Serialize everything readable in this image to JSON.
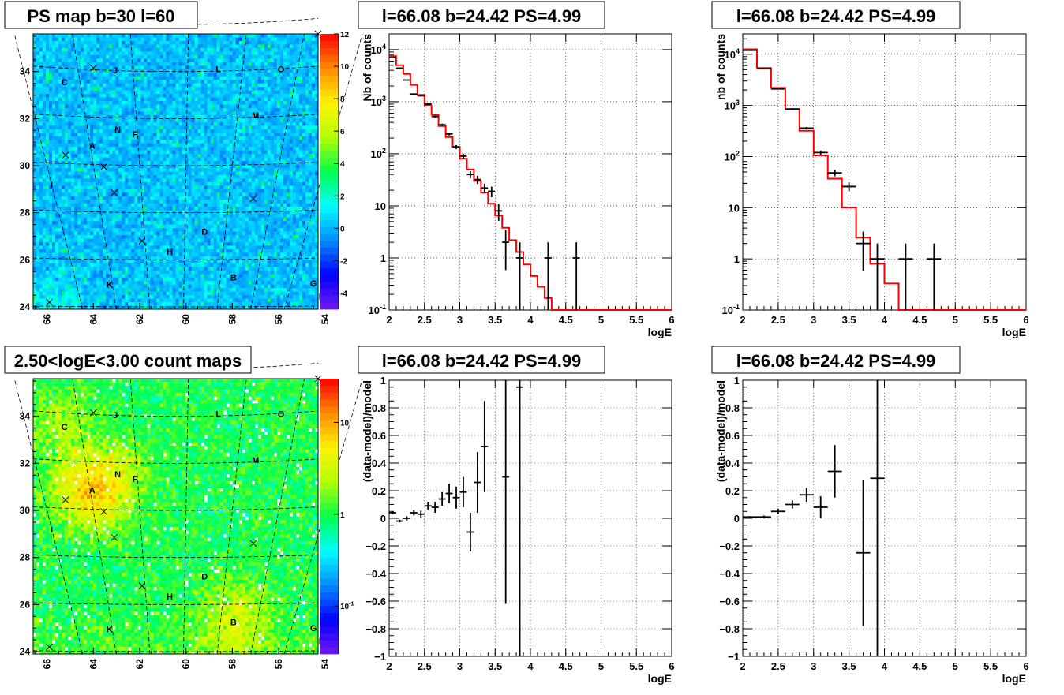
{
  "chart_data": [
    {
      "type": "heatmap",
      "title": "PS map b=30 l=60",
      "xlabel": "",
      "ylabel": "",
      "xlim": [
        66.6,
        54.3
      ],
      "ylim": [
        23.9,
        35.6
      ],
      "xticks": [
        "66",
        "64",
        "62",
        "60",
        "58",
        "56",
        "54"
      ],
      "yticks": [
        "24",
        "26",
        "28",
        "30",
        "32",
        "34"
      ],
      "colorscale": {
        "min": -5,
        "max": 12,
        "log": false,
        "tick_labels": [
          "-4",
          "-2",
          "0",
          "2",
          "4",
          "6",
          "8",
          "10",
          "12"
        ]
      },
      "source_labels": [
        "A",
        "B",
        "C",
        "D",
        "F",
        "G",
        "H",
        "I",
        "J",
        "K",
        "L",
        "M",
        "N",
        "O",
        "P"
      ]
    },
    {
      "type": "line",
      "title": "l=66.08 b=24.42 PS=4.99",
      "xlabel": "logE",
      "ylabel": "Nb of counts",
      "xlim": [
        2,
        6
      ],
      "ylim": [
        0.1,
        20000
      ],
      "log_y": true,
      "grid": true,
      "xticks": [
        "2",
        "2.5",
        "3",
        "3.5",
        "4",
        "4.5",
        "5",
        "5.5",
        "6"
      ],
      "yticks": [
        "10^-1",
        "1",
        "10",
        "10^2",
        "10^3",
        "10^4"
      ],
      "data_points": [
        {
          "x": 2.05,
          "y": 7000
        },
        {
          "x": 2.15,
          "y": 4400
        },
        {
          "x": 2.25,
          "y": 2600
        },
        {
          "x": 2.35,
          "y": 1400
        },
        {
          "x": 2.45,
          "y": 1300
        },
        {
          "x": 2.55,
          "y": 900
        },
        {
          "x": 2.65,
          "y": 520
        },
        {
          "x": 2.75,
          "y": 360
        },
        {
          "x": 2.85,
          "y": 240
        },
        {
          "x": 2.95,
          "y": 135
        },
        {
          "x": 3.05,
          "y": 90
        },
        {
          "x": 3.15,
          "y": 40
        },
        {
          "x": 3.25,
          "y": 32
        },
        {
          "x": 3.35,
          "y": 22
        },
        {
          "x": 3.45,
          "y": 19
        },
        {
          "x": 3.55,
          "y": 8
        },
        {
          "x": 3.65,
          "y": 2
        },
        {
          "x": 3.85,
          "y": 1
        },
        {
          "x": 4.25,
          "y": 1
        },
        {
          "x": 4.65,
          "y": 1
        }
      ],
      "model_steps": [
        [
          2.0,
          7500
        ],
        [
          2.1,
          5000
        ],
        [
          2.2,
          3400
        ],
        [
          2.3,
          2100
        ],
        [
          2.4,
          1350
        ],
        [
          2.5,
          850
        ],
        [
          2.6,
          560
        ],
        [
          2.7,
          340
        ],
        [
          2.8,
          210
        ],
        [
          2.9,
          135
        ],
        [
          3.0,
          80
        ],
        [
          3.1,
          50
        ],
        [
          3.2,
          30
        ],
        [
          3.3,
          18
        ],
        [
          3.4,
          11
        ],
        [
          3.5,
          6.5
        ],
        [
          3.6,
          3.8
        ],
        [
          3.7,
          2.2
        ],
        [
          3.8,
          1.3
        ],
        [
          3.9,
          0.75
        ],
        [
          4.0,
          0.45
        ],
        [
          4.1,
          0.28
        ],
        [
          4.2,
          0.17
        ],
        [
          4.3,
          0.1
        ],
        [
          6.0,
          0.1
        ]
      ]
    },
    {
      "type": "line",
      "title": "l=66.08 b=24.42 PS=4.99",
      "xlabel": "logE",
      "ylabel": "nb of counts",
      "xlim": [
        2,
        6
      ],
      "ylim": [
        0.1,
        25000
      ],
      "log_y": true,
      "grid": true,
      "xticks": [
        "2",
        "2.5",
        "3",
        "3.5",
        "4",
        "4.5",
        "5",
        "5.5",
        "6"
      ],
      "yticks": [
        "10^-1",
        "1",
        "10",
        "10^2",
        "10^3",
        "10^4"
      ],
      "data_points": [
        {
          "x": 2.1,
          "y": 12000
        },
        {
          "x": 2.3,
          "y": 5200
        },
        {
          "x": 2.5,
          "y": 2100
        },
        {
          "x": 2.7,
          "y": 850
        },
        {
          "x": 2.9,
          "y": 360
        },
        {
          "x": 3.1,
          "y": 120
        },
        {
          "x": 3.3,
          "y": 48
        },
        {
          "x": 3.5,
          "y": 26
        },
        {
          "x": 3.7,
          "y": 2
        },
        {
          "x": 3.9,
          "y": 1
        },
        {
          "x": 4.3,
          "y": 1
        },
        {
          "x": 4.7,
          "y": 1
        }
      ],
      "model_steps": [
        [
          2.0,
          12500
        ],
        [
          2.2,
          5400
        ],
        [
          2.4,
          2200
        ],
        [
          2.6,
          850
        ],
        [
          2.8,
          320
        ],
        [
          3.0,
          105
        ],
        [
          3.2,
          37
        ],
        [
          3.4,
          10
        ],
        [
          3.6,
          2.6
        ],
        [
          3.8,
          0.8
        ],
        [
          4.0,
          0.33
        ],
        [
          4.2,
          0.1
        ],
        [
          6.0,
          0.1
        ]
      ]
    },
    {
      "type": "heatmap",
      "title": "2.50<logE<3.00 count maps",
      "xlabel": "",
      "ylabel": "",
      "xlim": [
        66.6,
        54.3
      ],
      "ylim": [
        23.9,
        35.6
      ],
      "xticks": [
        "66",
        "64",
        "62",
        "60",
        "58",
        "56",
        "54"
      ],
      "yticks": [
        "24",
        "26",
        "28",
        "30",
        "32",
        "34"
      ],
      "colorscale": {
        "min": 0.03,
        "max": 30,
        "log": true,
        "tick_labels": [
          "10^-1",
          "1",
          "10"
        ]
      },
      "source_labels": [
        "A",
        "B",
        "C",
        "D",
        "F",
        "G",
        "H",
        "I",
        "J",
        "K",
        "L",
        "M",
        "N",
        "O",
        "P"
      ]
    },
    {
      "type": "scatter",
      "title": "l=66.08 b=24.42 PS=4.99",
      "xlabel": "logE",
      "ylabel": "(data-model)/model",
      "xlim": [
        2,
        6
      ],
      "ylim": [
        -1,
        1
      ],
      "grid": true,
      "xticks": [
        "2",
        "2.5",
        "3",
        "3.5",
        "4",
        "4.5",
        "5",
        "5.5",
        "6"
      ],
      "yticks": [
        "−1",
        "−0.8",
        "−0.6",
        "−0.4",
        "−0.2",
        "0",
        "0.2",
        "0.4",
        "0.6",
        "0.8",
        "1"
      ],
      "data_points": [
        {
          "x": 2.05,
          "y": 0.04,
          "err": 0.01
        },
        {
          "x": 2.15,
          "y": -0.02,
          "err": 0.01
        },
        {
          "x": 2.25,
          "y": 0.0,
          "err": 0.015
        },
        {
          "x": 2.35,
          "y": 0.04,
          "err": 0.02
        },
        {
          "x": 2.45,
          "y": 0.03,
          "err": 0.025
        },
        {
          "x": 2.55,
          "y": 0.09,
          "err": 0.03
        },
        {
          "x": 2.65,
          "y": 0.08,
          "err": 0.04
        },
        {
          "x": 2.75,
          "y": 0.14,
          "err": 0.05
        },
        {
          "x": 2.85,
          "y": 0.18,
          "err": 0.07
        },
        {
          "x": 2.95,
          "y": 0.15,
          "err": 0.08
        },
        {
          "x": 3.05,
          "y": 0.19,
          "err": 0.11
        },
        {
          "x": 3.15,
          "y": -0.1,
          "err": 0.14
        },
        {
          "x": 3.25,
          "y": 0.26,
          "err": 0.22
        },
        {
          "x": 3.35,
          "y": 0.52,
          "err": 0.33
        },
        {
          "x": 3.65,
          "y": 0.3,
          "err": 0.92
        },
        {
          "x": 3.85,
          "y": 0.95,
          "err": 1.95
        }
      ]
    },
    {
      "type": "scatter",
      "title": "l=66.08 b=24.42 PS=4.99",
      "xlabel": "logE",
      "ylabel": "(data-model)/model",
      "xlim": [
        2,
        6
      ],
      "ylim": [
        -1,
        1
      ],
      "grid": true,
      "xticks": [
        "2",
        "2.5",
        "3",
        "3.5",
        "4",
        "4.5",
        "5",
        "5.5",
        "6"
      ],
      "yticks": [
        "−1",
        "−0.8",
        "−0.6",
        "−0.4",
        "−0.2",
        "0",
        "0.2",
        "0.4",
        "0.6",
        "0.8",
        "1"
      ],
      "data_points": [
        {
          "x": 2.1,
          "y": 0.01,
          "err": 0.005
        },
        {
          "x": 2.3,
          "y": 0.01,
          "err": 0.01
        },
        {
          "x": 2.5,
          "y": 0.05,
          "err": 0.02
        },
        {
          "x": 2.7,
          "y": 0.1,
          "err": 0.03
        },
        {
          "x": 2.9,
          "y": 0.17,
          "err": 0.05
        },
        {
          "x": 3.1,
          "y": 0.08,
          "err": 0.08
        },
        {
          "x": 3.3,
          "y": 0.34,
          "err": 0.19
        },
        {
          "x": 3.7,
          "y": -0.25,
          "err": 0.53
        },
        {
          "x": 3.9,
          "y": 0.29,
          "err": 1.4
        }
      ]
    }
  ]
}
